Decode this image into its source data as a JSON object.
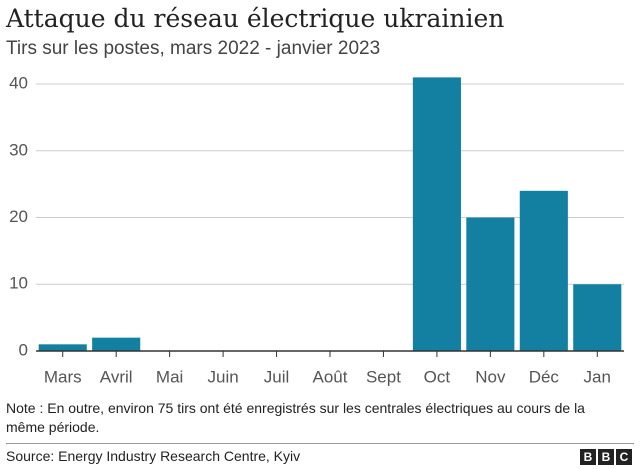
{
  "chart_data": {
    "type": "bar",
    "title": "Attaque du réseau électrique ukrainien",
    "subtitle": "Tirs sur les postes, mars 2022 - janvier 2023",
    "categories": [
      "Mars",
      "Avril",
      "Mai",
      "Juin",
      "Juil",
      "Août",
      "Sept",
      "Oct",
      "Nov",
      "Déc",
      "Jan"
    ],
    "values": [
      1,
      2,
      0,
      0,
      0,
      0,
      0,
      41,
      20,
      24,
      10
    ],
    "color": "#1380a1",
    "ylim": [
      0,
      42
    ],
    "yticks": [
      0,
      10,
      20,
      30,
      40
    ],
    "grid": true,
    "note": "Note : En outre, environ 75 tirs ont été enregistrés sur les centrales électriques au cours de la même période.",
    "source": "Source: Energy Industry Research Centre, Kyiv",
    "logo": [
      "B",
      "B",
      "C"
    ]
  }
}
